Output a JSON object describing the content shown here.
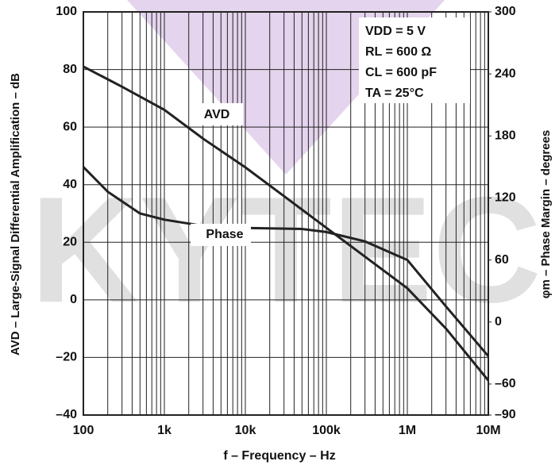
{
  "watermark": "KYTEC",
  "chart_data": {
    "type": "line",
    "x_label": "f – Frequency – Hz",
    "y_label": "AVD – Large-Signal Differential Amplification – dB",
    "y2_label": "φm – Phase Margin – degrees",
    "annotations": [
      "VDD = 5 V",
      "RL = 600 Ω",
      "CL = 600 pF",
      "TA = 25°C"
    ],
    "x_scale": "log",
    "xlim": [
      100,
      10000000
    ],
    "xticks": [
      {
        "value": 100,
        "label": "100"
      },
      {
        "value": 1000,
        "label": "1k"
      },
      {
        "value": 10000,
        "label": "10k"
      },
      {
        "value": 100000,
        "label": "100k"
      },
      {
        "value": 1000000,
        "label": "1M"
      },
      {
        "value": 10000000,
        "label": "10M"
      }
    ],
    "ylim": [
      -40,
      100
    ],
    "yticks": [
      {
        "value": -40,
        "label": "–40"
      },
      {
        "value": -20,
        "label": "–20"
      },
      0,
      20,
      40,
      60,
      80,
      100
    ],
    "y2lim": [
      -90,
      300
    ],
    "y2ticks": [
      {
        "value": -90,
        "label": "–90"
      },
      {
        "value": -60,
        "label": "–60"
      },
      0,
      60,
      120,
      180,
      240,
      300
    ],
    "grid": true,
    "series": [
      {
        "name": "AVD",
        "color": "#222222",
        "x": [
          100,
          300,
          1000,
          3000,
          10000,
          30000,
          100000,
          300000,
          1000000,
          3000000,
          10000000
        ],
        "values": [
          81,
          74,
          66,
          56,
          46,
          36,
          25,
          15,
          4,
          -10,
          -28
        ]
      },
      {
        "name": "Phase",
        "color": "#222222",
        "axis": "y2",
        "x": [
          100,
          200,
          500,
          1000,
          3000,
          10000,
          50000,
          100000,
          300000,
          1000000,
          3000000,
          10000000
        ],
        "values": [
          150,
          126,
          105,
          99,
          93,
          91,
          90,
          87,
          78,
          60,
          15,
          -33
        ]
      }
    ]
  }
}
